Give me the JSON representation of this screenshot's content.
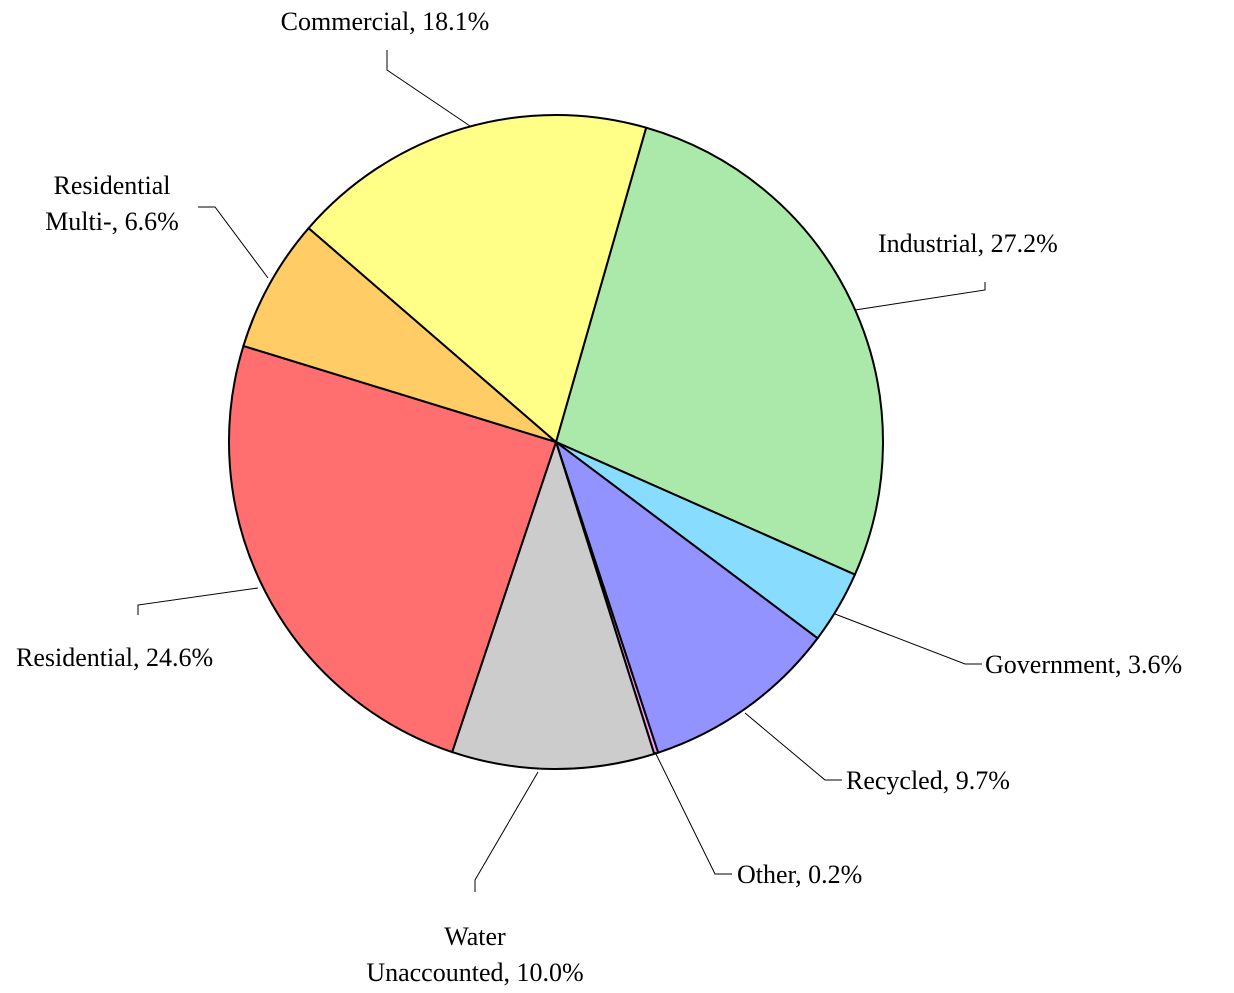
{
  "chart_data": {
    "type": "pie",
    "title": "",
    "slices": [
      {
        "label": "Industrial, 27.2%",
        "name": "Industrial",
        "value": 27.2,
        "color": "#AAE9AA"
      },
      {
        "label": "Government, 3.6%",
        "name": "Government",
        "value": 3.6,
        "color": "#88DDFF"
      },
      {
        "label": "Recycled, 9.7%",
        "name": "Recycled",
        "value": 9.7,
        "color": "#9393FF"
      },
      {
        "label": "Other, 0.2%",
        "name": "Other",
        "value": 0.2,
        "color": "#FF99FF"
      },
      {
        "label": "Water Unaccounted, 10.0%",
        "lines": [
          "Water",
          "Unaccounted, 10.0%"
        ],
        "name": "Water Unaccounted",
        "value": 10.0,
        "color": "#CCCCCC"
      },
      {
        "label": "Residential, 24.6%",
        "name": "Residential",
        "value": 24.6,
        "color": "#FF6F6F"
      },
      {
        "label": "Residential Multi-, 6.6%",
        "lines": [
          "Residential",
          "Multi-, 6.6%"
        ],
        "name": "Residential Multi-",
        "value": 6.6,
        "color": "#FFCC66"
      },
      {
        "label": "Commercial, 18.1%",
        "name": "Commercial",
        "value": 18.1,
        "color": "#FFFF88"
      }
    ],
    "start_angle_deg": 16,
    "direction": "clockwise",
    "legend": "none"
  }
}
